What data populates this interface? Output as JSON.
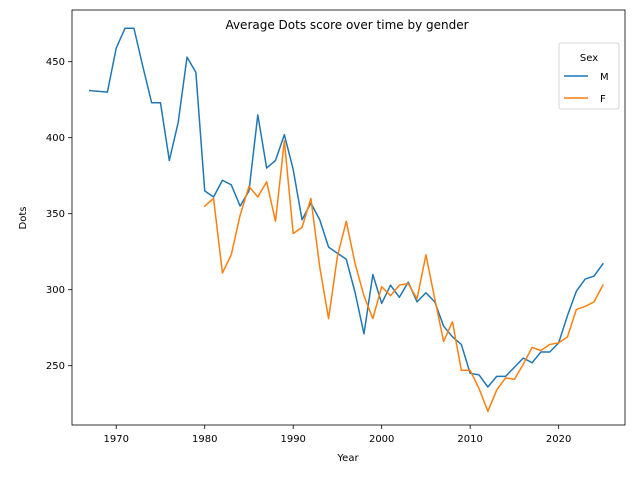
{
  "chart_data": {
    "type": "line",
    "title": "Average Dots score over time by gender",
    "xlabel": "Year",
    "ylabel": "Dots",
    "xlim": [
      1965,
      2027.5
    ],
    "ylim": [
      211,
      484
    ],
    "xticks": [
      1970,
      1980,
      1990,
      2000,
      2010,
      2020
    ],
    "yticks": [
      250,
      300,
      350,
      400,
      450
    ],
    "grid": false,
    "legend": {
      "title": "Sex",
      "placement": "top-right"
    },
    "series": [
      {
        "name": "M",
        "color": "#1f77b4",
        "x": [
          1967,
          1969,
          1970,
          1971,
          1972,
          1973,
          1974,
          1975,
          1976,
          1977,
          1978,
          1979,
          1980,
          1981,
          1982,
          1983,
          1984,
          1985,
          1986,
          1987,
          1988,
          1989,
          1990,
          1991,
          1992,
          1993,
          1994,
          1995,
          1996,
          1997,
          1998,
          1999,
          2000,
          2001,
          2002,
          2003,
          2004,
          2005,
          2006,
          2007,
          2008,
          2009,
          2010,
          2011,
          2012,
          2013,
          2014,
          2015,
          2016,
          2017,
          2018,
          2019,
          2020,
          2021,
          2022,
          2023,
          2024,
          2025
        ],
        "values": [
          431,
          430,
          459,
          472,
          472,
          447,
          423,
          423,
          385,
          410,
          453,
          443,
          365,
          361,
          372,
          369,
          355,
          365,
          415,
          380,
          385,
          402,
          379,
          346,
          357,
          346,
          328,
          324,
          320,
          298,
          271,
          310,
          291,
          303,
          295,
          305,
          292,
          298,
          292,
          276,
          269,
          264,
          245,
          244,
          236,
          243,
          243,
          249,
          255,
          252,
          259,
          259,
          265,
          283,
          299,
          307,
          309,
          317
        ]
      },
      {
        "name": "F",
        "color": "#ff7f0e",
        "x": [
          1980,
          1981,
          1982,
          1983,
          1984,
          1985,
          1986,
          1987,
          1988,
          1989,
          1990,
          1991,
          1992,
          1993,
          1994,
          1995,
          1996,
          1997,
          1998,
          1999,
          2000,
          2001,
          2002,
          2003,
          2004,
          2005,
          2006,
          2007,
          2008,
          2009,
          2010,
          2011,
          2012,
          2013,
          2014,
          2015,
          2016,
          2017,
          2018,
          2019,
          2020,
          2021,
          2022,
          2023,
          2024,
          2025
        ],
        "values": [
          355,
          360,
          311,
          323,
          349,
          368,
          361,
          371,
          345,
          398,
          337,
          341,
          360,
          315,
          281,
          322,
          345,
          317,
          296,
          281,
          302,
          296,
          303,
          304,
          294,
          323,
          294,
          266,
          279,
          247,
          247,
          235,
          220,
          234,
          242,
          241,
          251,
          262,
          260,
          264,
          265,
          269,
          287,
          289,
          292,
          303
        ]
      }
    ]
  }
}
